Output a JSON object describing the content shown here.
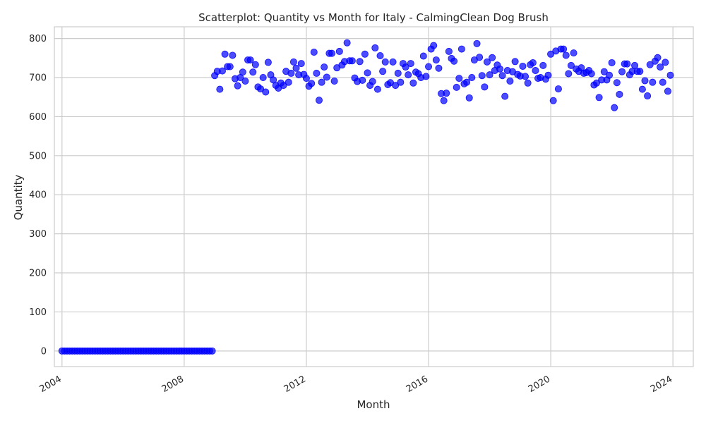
{
  "chart_data": {
    "type": "scatter",
    "title": "Scatterplot: Quantity vs Month for Italy - CalmingClean Dog Brush",
    "xlabel": "Month",
    "ylabel": "Quantity",
    "x_ticks": [
      "2004",
      "2008",
      "2012",
      "2016",
      "2020",
      "2024"
    ],
    "y_ticks": [
      "0",
      "100",
      "200",
      "300",
      "400",
      "500",
      "600",
      "700",
      "800"
    ],
    "xlim": [
      "2003-10",
      "2024-09"
    ],
    "ylim": [
      -40,
      830
    ],
    "grid": true,
    "marker_color": "#0000ff",
    "start_month": "2004-01",
    "values": [
      0,
      0,
      0,
      0,
      0,
      0,
      0,
      0,
      0,
      0,
      0,
      0,
      0,
      0,
      0,
      0,
      0,
      0,
      0,
      0,
      0,
      0,
      0,
      0,
      0,
      0,
      0,
      0,
      0,
      0,
      0,
      0,
      0,
      0,
      0,
      0,
      0,
      0,
      0,
      0,
      0,
      0,
      0,
      0,
      0,
      0,
      0,
      0,
      0,
      0,
      0,
      0,
      0,
      0,
      0,
      0,
      0,
      0,
      0,
      0,
      705,
      716,
      670,
      717,
      760,
      728,
      728,
      757,
      697,
      679,
      700,
      714,
      691,
      745,
      745,
      714,
      733,
      676,
      671,
      700,
      663,
      739,
      707,
      694,
      680,
      673,
      686,
      680,
      716,
      688,
      711,
      740,
      724,
      707,
      736,
      708,
      698,
      678,
      685,
      765,
      711,
      642,
      688,
      727,
      701,
      762,
      762,
      691,
      725,
      767,
      732,
      741,
      789,
      743,
      743,
      699,
      690,
      741,
      693,
      760,
      712,
      680,
      690,
      776,
      670,
      756,
      716,
      740,
      682,
      687,
      740,
      680,
      711,
      688,
      736,
      727,
      707,
      736,
      686,
      714,
      710,
      700,
      755,
      703,
      728,
      773,
      782,
      745,
      724,
      659,
      641,
      660,
      767,
      749,
      742,
      675,
      698,
      773,
      684,
      688,
      648,
      700,
      745,
      787,
      752,
      705,
      676,
      740,
      707,
      751,
      718,
      732,
      722,
      705,
      652,
      718,
      691,
      715,
      741,
      708,
      704,
      729,
      703,
      686,
      733,
      738,
      718,
      698,
      700,
      731,
      696,
      706,
      760,
      641,
      768,
      671,
      773,
      773,
      757,
      710,
      731,
      763,
      722,
      716,
      725,
      711,
      713,
      718,
      710,
      681,
      686,
      649,
      694,
      715,
      694,
      706,
      738,
      623,
      687,
      657,
      715,
      735,
      735,
      707,
      716,
      731,
      716,
      716,
      670,
      692,
      653,
      733,
      688,
      742,
      751,
      727,
      688,
      739,
      665,
      706
    ]
  }
}
